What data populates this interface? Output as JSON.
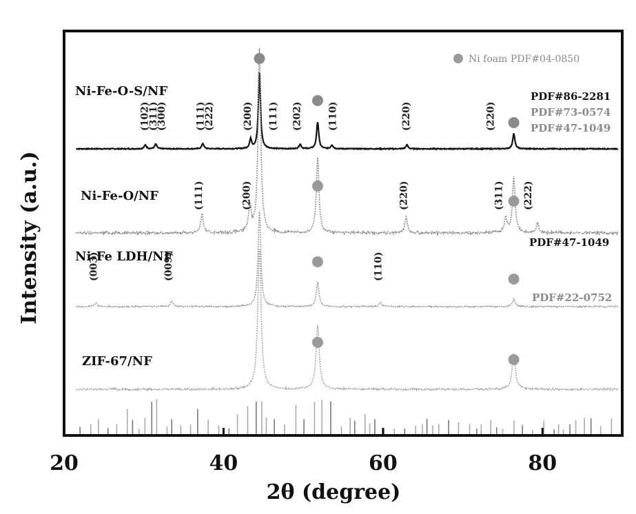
{
  "chart_data": {
    "type": "line",
    "xlabel": "2θ (degree)",
    "ylabel": "Intensity (a.u.)",
    "xlim": [
      20,
      90
    ],
    "xticks": [
      20,
      40,
      60,
      80
    ],
    "xtick_labels": [
      "20",
      "40",
      "60",
      "80"
    ],
    "grid": false,
    "legend": {
      "marker": "circle",
      "label": "Ni foam PDF#04-0850",
      "placement": "top-right"
    },
    "series": [
      {
        "name": "Ni-Fe-O-S/NF",
        "color": "#111111",
        "ref_cards": [
          "PDF#86-2281",
          "PDF#73-0574",
          "PDF#47-1049"
        ],
        "peaks": [
          {
            "x": 30.2,
            "h": 0.05
          },
          {
            "x": 31.5,
            "h": 0.06
          },
          {
            "x": 37.4,
            "h": 0.07
          },
          {
            "x": 43.4,
            "h": 0.12
          },
          {
            "x": 44.5,
            "h": 1.0
          },
          {
            "x": 49.6,
            "h": 0.06
          },
          {
            "x": 51.8,
            "h": 0.35
          },
          {
            "x": 53.6,
            "h": 0.05
          },
          {
            "x": 63.0,
            "h": 0.05
          },
          {
            "x": 76.4,
            "h": 0.2
          }
        ],
        "hkl": [
          {
            "x": 30.5,
            "label": "(102)"
          },
          {
            "x": 31.6,
            "label": "(311)"
          },
          {
            "x": 32.6,
            "label": "(300)"
          },
          {
            "x": 37.5,
            "label": "(111)"
          },
          {
            "x": 38.6,
            "label": "(222)"
          },
          {
            "x": 43.4,
            "label": "(200)"
          },
          {
            "x": 46.6,
            "label": "(111)"
          },
          {
            "x": 49.6,
            "label": "(202)"
          },
          {
            "x": 54.1,
            "label": "(110)"
          },
          {
            "x": 63.3,
            "label": "(220)"
          },
          {
            "x": 73.9,
            "label": "(220)"
          }
        ],
        "ni_foam_markers": [
          44.5,
          51.8,
          76.4
        ]
      },
      {
        "name": "Ni-Fe-O/NF",
        "color": "#8c8c8c",
        "peaks": [
          {
            "x": 37.3,
            "h": 0.1
          },
          {
            "x": 43.3,
            "h": 0.14
          },
          {
            "x": 44.5,
            "h": 1.0
          },
          {
            "x": 51.8,
            "h": 0.4
          },
          {
            "x": 62.9,
            "h": 0.08
          },
          {
            "x": 75.4,
            "h": 0.08
          },
          {
            "x": 76.4,
            "h": 0.3
          },
          {
            "x": 79.4,
            "h": 0.05
          }
        ],
        "hkl": [
          {
            "x": 37.3,
            "label": "(111)"
          },
          {
            "x": 43.3,
            "label": "(200)"
          },
          {
            "x": 63.0,
            "label": "(220)"
          },
          {
            "x": 74.9,
            "label": "(311)"
          },
          {
            "x": 78.6,
            "label": "(222)"
          }
        ],
        "ni_foam_markers": [
          51.8,
          76.4
        ]
      },
      {
        "name": "Ni-Fe LDH/NF",
        "ref_cards": [
          "PDF#47-1049"
        ],
        "color": "#9a9a9a",
        "peaks": [
          {
            "x": 24.0,
            "h": 0.04
          },
          {
            "x": 33.5,
            "h": 0.05
          },
          {
            "x": 44.5,
            "h": 1.0
          },
          {
            "x": 51.8,
            "h": 0.25
          },
          {
            "x": 59.7,
            "h": 0.04
          },
          {
            "x": 76.4,
            "h": 0.08
          }
        ],
        "hkl": [
          {
            "x": 24.1,
            "label": "(003)"
          },
          {
            "x": 33.5,
            "label": "(009)"
          },
          {
            "x": 59.8,
            "label": "(110)"
          }
        ],
        "ni_foam_markers": [
          51.8,
          76.4
        ]
      },
      {
        "name": "ZIF-67/NF",
        "ref_cards": [
          "PDF#22-0752"
        ],
        "color": "#a8a8a8",
        "peaks": [
          {
            "x": 44.5,
            "h": 1.0
          },
          {
            "x": 51.8,
            "h": 0.45
          },
          {
            "x": 76.4,
            "h": 0.25
          }
        ],
        "ni_foam_markers": [
          51.8,
          76.4
        ]
      }
    ]
  }
}
